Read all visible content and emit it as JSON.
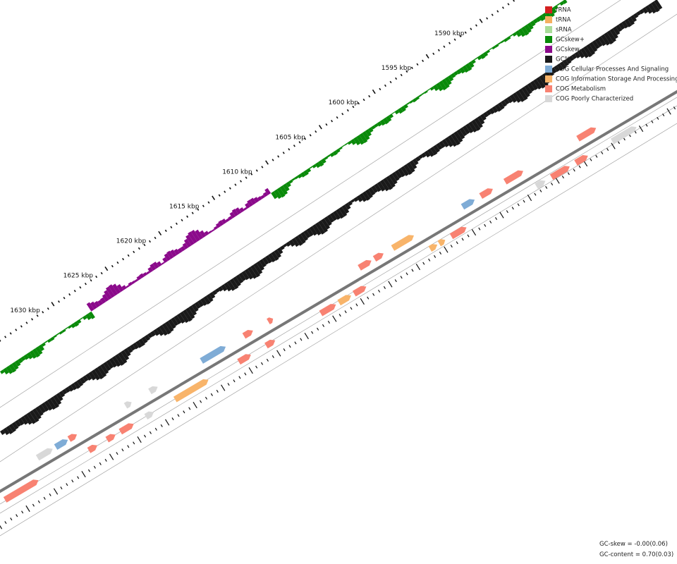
{
  "scale_labels": [
    "1590 kbp",
    "1595 kbp",
    "1600 kbp",
    "1605 kbp",
    "1610 kbp",
    "1615 kbp",
    "1620 kbp",
    "1625 kbp",
    "1630 kbp"
  ],
  "legend": [
    {
      "label": "rRNA",
      "color": "#d42020"
    },
    {
      "label": "tRNA",
      "color": "#f5b060"
    },
    {
      "label": "sRNA",
      "color": "#a8dc98"
    },
    {
      "label": "GCskew+",
      "color": "#0a8a0a"
    },
    {
      "label": "GCskew-",
      "color": "#8b0a8b"
    },
    {
      "label": "GC%",
      "color": "#1a1a1a"
    },
    {
      "label": "COG Cellular Processes And Signaling",
      "color": "#7facd6"
    },
    {
      "label": "COG Information Storage And Processing",
      "color": "#f8b46a"
    },
    {
      "label": "COG Metabolism",
      "color": "#f88272"
    },
    {
      "label": "COG Poorly Characterized",
      "color": "#d8d8d8"
    }
  ],
  "footer": [
    "GC-skew = -0.00(0.06)",
    "GC-content = 0.70(0.03)"
  ]
}
